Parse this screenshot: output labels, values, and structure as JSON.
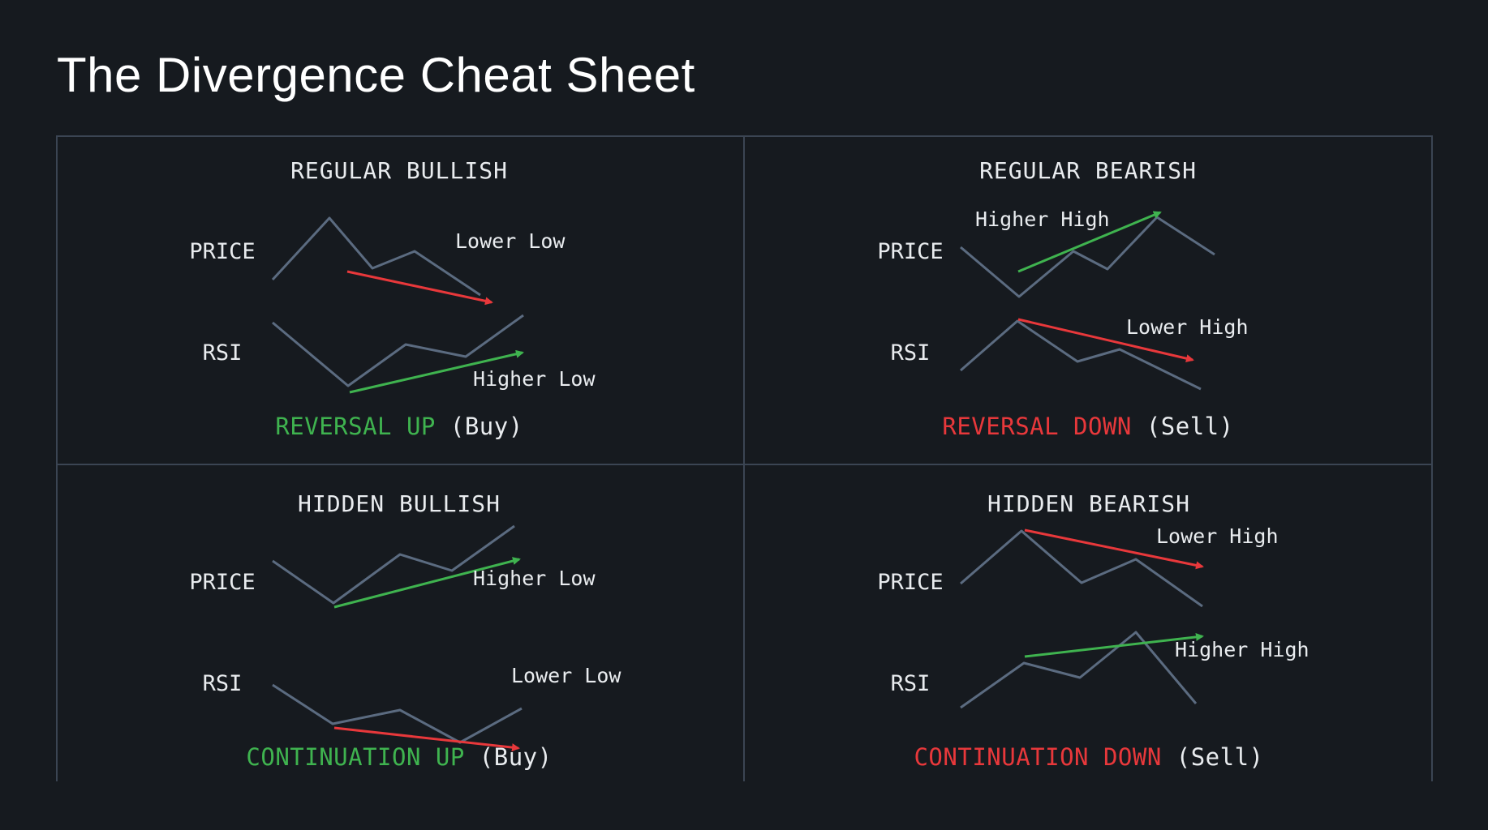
{
  "title": "The Divergence Cheat Sheet",
  "colors": {
    "background": "#161a1f",
    "grid_line": "#3b4553",
    "curve": "#5b6b80",
    "bullish": "#3fb34f",
    "bearish": "#e8383b",
    "text": "#e9ecef"
  },
  "panels": [
    {
      "heading": "REGULAR BULLISH",
      "price_label": "PRICE",
      "rsi_label": "RSI",
      "price_note": "Lower Low",
      "rsi_note": "Higher Low",
      "signal": "REVERSAL UP",
      "signal_note": "(Buy)"
    },
    {
      "heading": "REGULAR BEARISH",
      "price_label": "PRICE",
      "rsi_label": "RSI",
      "price_note": "Higher High",
      "rsi_note": "Lower High",
      "signal": "REVERSAL DOWN",
      "signal_note": "(Sell)"
    },
    {
      "heading": "HIDDEN BULLISH",
      "price_label": "PRICE",
      "rsi_label": "RSI",
      "price_note": "Higher Low",
      "rsi_note": "Lower Low",
      "signal": "CONTINUATION UP",
      "signal_note": "(Buy)"
    },
    {
      "heading": "HIDDEN BEARISH",
      "price_label": "PRICE",
      "rsi_label": "RSI",
      "price_note": "Lower High",
      "rsi_note": "Higher High",
      "signal": "CONTINUATION DOWN",
      "signal_note": "(Sell)"
    }
  ]
}
